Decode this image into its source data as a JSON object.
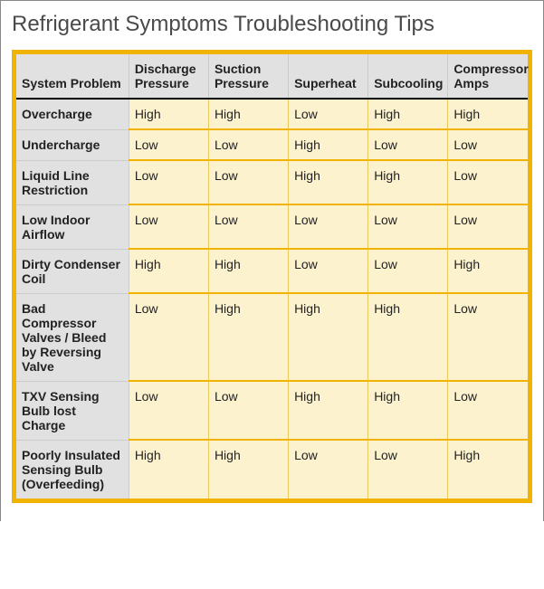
{
  "title": "Refrigerant Symptoms Troubleshooting Tips",
  "table": {
    "columns": [
      "System Problem",
      "Discharge Pressure",
      "Suction Pressure",
      "Superheat",
      "Subcooling",
      "Compressor Amps"
    ],
    "rows": [
      {
        "problem": "Overcharge",
        "cells": [
          "High",
          "High",
          "Low",
          "High",
          "High"
        ]
      },
      {
        "problem": "Undercharge",
        "cells": [
          "Low",
          "Low",
          "High",
          "Low",
          "Low"
        ]
      },
      {
        "problem": "Liquid Line Restriction",
        "cells": [
          "Low",
          "Low",
          "High",
          "High",
          "Low"
        ]
      },
      {
        "problem": "Low Indoor Airflow",
        "cells": [
          "Low",
          "Low",
          "Low",
          "Low",
          "Low"
        ]
      },
      {
        "problem": "Dirty Condenser Coil",
        "cells": [
          "High",
          "High",
          "Low",
          "Low",
          "High"
        ]
      },
      {
        "problem": "Bad Compressor Valves / Bleed by Reversing Valve",
        "cells": [
          "Low",
          "High",
          "High",
          "High",
          "Low"
        ]
      },
      {
        "problem": "TXV Sensing Bulb lost Charge",
        "cells": [
          "Low",
          "Low",
          "High",
          "High",
          "Low"
        ]
      },
      {
        "problem": "Poorly Insulated Sensing Bulb (Overfeeding)",
        "cells": [
          "High",
          "High",
          "Low",
          "Low",
          "High"
        ]
      }
    ]
  },
  "style": {
    "accent_border": "#f0b400",
    "header_bg": "#e1e1e1",
    "cell_bg": "#fdf2ce",
    "title_color": "#4a4a4a",
    "text_color": "#222222",
    "grid_color": "#e9c85e",
    "title_fontsize": 24,
    "cell_fontsize": 14
  }
}
